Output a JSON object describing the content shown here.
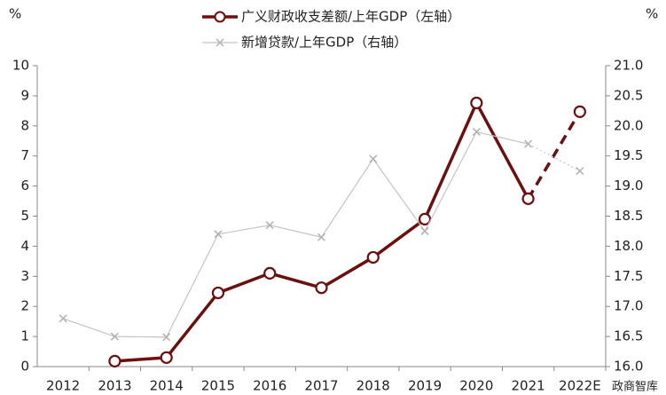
{
  "chart_data": {
    "type": "line",
    "ylabel": "%",
    "y2label": "%",
    "watermark": "政商智库",
    "categories": [
      "2012",
      "2013",
      "2014",
      "2015",
      "2016",
      "2017",
      "2018",
      "2019",
      "2020",
      "2021",
      "2022E"
    ],
    "dashed_from": "2021",
    "series": [
      {
        "name": "广义财政收支差额/上年GDP（左轴）",
        "color": "#6b0f0f",
        "marker": "circle",
        "axis": "y",
        "values": [
          null,
          0.18,
          0.3,
          2.45,
          3.1,
          2.62,
          3.63,
          4.9,
          8.76,
          5.58,
          8.47
        ]
      },
      {
        "name": "新增贷款/上年GDP（右轴）",
        "color": "#c4c4c4",
        "marker": "x",
        "axis": "y2",
        "values": [
          16.8,
          16.5,
          16.49,
          18.2,
          18.35,
          18.15,
          19.45,
          18.25,
          19.9,
          19.7,
          19.25
        ]
      }
    ],
    "ylim": [
      0,
      10
    ],
    "yticks": [
      0,
      1,
      2,
      3,
      4,
      5,
      6,
      7,
      8,
      9,
      10
    ],
    "y2lim": [
      16,
      21
    ],
    "y2ticks": [
      {
        "value": 16,
        "label": "16.0"
      },
      16.5,
      {
        "value": 17,
        "label": "17.0"
      },
      17.5,
      {
        "value": 18,
        "label": "18.0"
      },
      18.5,
      {
        "value": 19,
        "label": "19.0"
      },
      19.5,
      {
        "value": 20,
        "label": "20.0"
      },
      20.5,
      {
        "value": 21,
        "label": "21.0"
      }
    ]
  }
}
